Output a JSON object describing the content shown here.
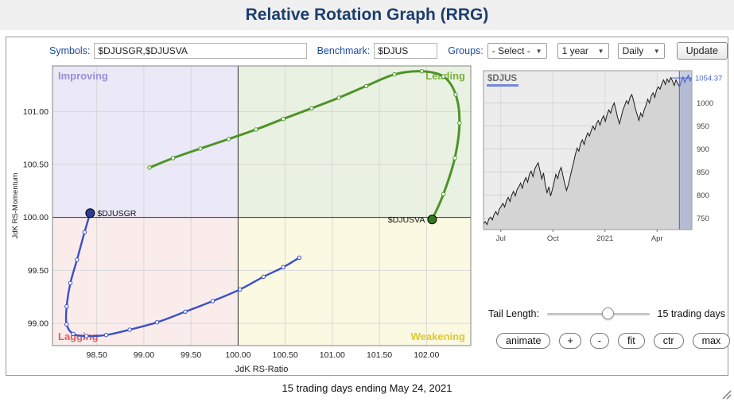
{
  "header": {
    "title": "Relative Rotation Graph (RRG)"
  },
  "toolbar": {
    "symbols_label": "Symbols:",
    "symbols_value": "$DJUSGR,$DJUSVA",
    "benchmark_label": "Benchmark:",
    "benchmark_value": "$DJUS",
    "groups_label": "Groups:",
    "groups_selected": "- Select -",
    "period_selected": "1 year",
    "frequency_selected": "Daily",
    "update_button": "Update"
  },
  "tail": {
    "label": "Tail Length:",
    "value_text": "15 trading days",
    "slider_pos": 0.6
  },
  "action_buttons": [
    "animate",
    "+",
    "-",
    "fit",
    "ctr",
    "max"
  ],
  "footer": {
    "text": "15 trading days ending May 24, 2021"
  },
  "colors": {
    "title_blue": "#1c3e6e",
    "label_blue": "#1b4a9b",
    "improving_bg": "#ebe8f7",
    "leading_bg": "#e9f2e2",
    "lagging_bg": "#fbecec",
    "weakening_bg": "#fcf9e3",
    "improving_text": "#9a8fd6",
    "leading_text": "#7ab23c",
    "lagging_text": "#e05f55",
    "weakening_text": "#ddc92e",
    "blue_trail": "#3a50c8",
    "blue_head": "#2b3c9e",
    "green_trail": "#4d9427",
    "green_head": "#2f7a1c",
    "highlight_blue": "#4a66cc"
  },
  "chart_data": [
    {
      "type": "scatter",
      "name": "rrg-quadrant-chart",
      "xlabel": "JdK RS-Ratio",
      "ylabel": "JdK RS-Momentum",
      "xlim": [
        98.03,
        102.47
      ],
      "ylim": [
        98.79,
        101.43
      ],
      "x_ticks": [
        "98.50",
        "99.00",
        "99.50",
        "100.00",
        "100.50",
        "101.00",
        "101.50",
        "102.00"
      ],
      "y_ticks": [
        "99.00",
        "99.50",
        "100.00",
        "100.50",
        "101.00"
      ],
      "center": [
        100,
        100
      ],
      "quadrant_labels": [
        "Improving",
        "Leading",
        "Lagging",
        "Weakening"
      ],
      "series": [
        {
          "name": "$DJUSGR",
          "color": "#3a50c8",
          "head_fill": "#2b3c9e",
          "width": 2.4,
          "label_side": "right",
          "points": [
            [
              100.65,
              99.62
            ],
            [
              100.48,
              99.53
            ],
            [
              100.27,
              99.44
            ],
            [
              100.02,
              99.32
            ],
            [
              99.73,
              99.21
            ],
            [
              99.44,
              99.11
            ],
            [
              99.14,
              99.01
            ],
            [
              98.85,
              98.94
            ],
            [
              98.6,
              98.89
            ],
            [
              98.39,
              98.88
            ],
            [
              98.25,
              98.9
            ],
            [
              98.18,
              98.99
            ],
            [
              98.18,
              99.16
            ],
            [
              98.22,
              99.38
            ],
            [
              98.29,
              99.6
            ],
            [
              98.37,
              99.86
            ],
            [
              98.43,
              100.04
            ]
          ]
        },
        {
          "name": "$DJUSVA",
          "color": "#4d9427",
          "head_fill": "#2f7a1c",
          "width": 3,
          "label_side": "left",
          "points": [
            [
              99.06,
              100.47
            ],
            [
              99.31,
              100.56
            ],
            [
              99.6,
              100.65
            ],
            [
              99.9,
              100.74
            ],
            [
              100.19,
              100.83
            ],
            [
              100.48,
              100.93
            ],
            [
              100.78,
              101.03
            ],
            [
              101.07,
              101.13
            ],
            [
              101.36,
              101.24
            ],
            [
              101.66,
              101.35
            ],
            [
              101.95,
              101.38
            ],
            [
              102.18,
              101.33
            ],
            [
              102.31,
              101.16
            ],
            [
              102.35,
              100.89
            ],
            [
              102.3,
              100.56
            ],
            [
              102.18,
              100.22
            ],
            [
              102.06,
              99.98
            ]
          ]
        }
      ]
    },
    {
      "type": "line",
      "name": "benchmark-price-chart",
      "title": "$DJUS",
      "ylim": [
        725,
        1070
      ],
      "y_ticks": [
        750,
        800,
        850,
        900,
        950,
        1000
      ],
      "x_tick_labels": [
        [
          "Jul",
          0.083
        ],
        [
          "Oct",
          0.333
        ],
        [
          "2021",
          0.583
        ],
        [
          "Apr",
          0.833
        ]
      ],
      "last_value_label": "1054.37",
      "highlight_start_frac": 0.94,
      "values": [
        738,
        742,
        736,
        748,
        752,
        746,
        758,
        764,
        757,
        770,
        775,
        782,
        774,
        788,
        795,
        786,
        800,
        808,
        798,
        812,
        818,
        826,
        815,
        830,
        838,
        828,
        845,
        852,
        840,
        856,
        864,
        870,
        852,
        835,
        848,
        822,
        805,
        818,
        798,
        812,
        828,
        845,
        836,
        852,
        860,
        842,
        825,
        810,
        822,
        838,
        855,
        870,
        888,
        902,
        895,
        912,
        920,
        910,
        925,
        935,
        928,
        940,
        950,
        942,
        955,
        962,
        952,
        965,
        972,
        960,
        975,
        985,
        978,
        992,
        1000,
        985,
        968,
        955,
        970,
        985,
        995,
        1005,
        998,
        1012,
        1018,
        1005,
        988,
        975,
        962,
        978,
        970,
        985,
        995,
        1008,
        1000,
        1015,
        1022,
        1012,
        1028,
        1035,
        1030,
        1042,
        1050,
        1040,
        1052,
        1045,
        1055,
        1048,
        1038,
        1050,
        1042,
        1035,
        1048,
        1056,
        1045,
        1052,
        1060,
        1048,
        1054.37
      ]
    }
  ]
}
